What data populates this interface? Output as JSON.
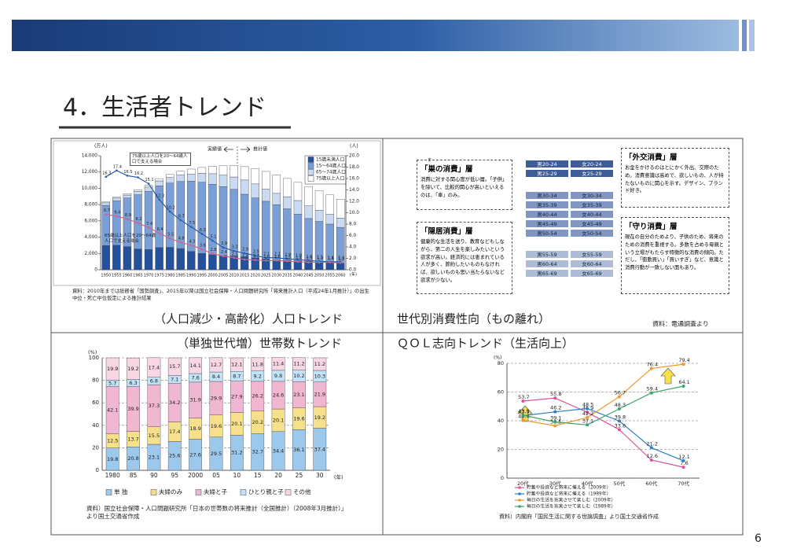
{
  "header": {
    "title": "4．生活者トレンド"
  },
  "page_number": "6",
  "chart_data": [
    {
      "type": "bar",
      "title": "（人口減少・高齢化）人口トレンド",
      "y_label": "(万人)",
      "y2_label": "(人)",
      "x_label": "(年)",
      "annotations": [
        "実績値",
        "推計値",
        "75歳以上人口を20～64歳人口で支える場合",
        "65歳以上人口を20～64歳人口で支える場合"
      ],
      "source": "資料：2010年までは総務省「国勢調査」、2015年以降は国立社会保障・人口問題研究所「将来推計人口（平成24年1月推計）」の出生中位・死亡中位仮定による推計結果",
      "categories": [
        "1950",
        "1955",
        "1960",
        "1965",
        "1970",
        "1975",
        "1980",
        "1985",
        "1990",
        "1995",
        "2000",
        "2005",
        "2010",
        "2015",
        "2020",
        "2025",
        "2030",
        "2035",
        "2040",
        "2045",
        "2050",
        "2055",
        "2060"
      ],
      "ylim": [
        0,
        14000
      ],
      "yticks": [
        0,
        {
          "value": 2000,
          "label": "2,000"
        },
        {
          "value": 4000,
          "label": "4,000"
        },
        {
          "value": 6000,
          "label": "6,000"
        },
        {
          "value": 8000,
          "label": "8,000"
        },
        {
          "value": 10000,
          "label": "10,000"
        },
        {
          "value": 12000,
          "label": "12,000"
        },
        {
          "value": 14000,
          "label": "14,000"
        }
      ],
      "y2lim": [
        0,
        20
      ],
      "y2ticks": [
        {
          "value": 0,
          "label": "0.0"
        },
        {
          "value": 2,
          "label": "2.0"
        },
        {
          "value": 4,
          "label": "4.0"
        },
        {
          "value": 6,
          "label": "6.0"
        },
        {
          "value": 8,
          "label": "8.0"
        },
        {
          "value": 10,
          "label": "10.0"
        },
        {
          "value": 12,
          "label": "12.0"
        },
        {
          "value": 14,
          "label": "14.0"
        },
        {
          "value": 16,
          "label": "16.0"
        },
        {
          "value": 18,
          "label": "18.0"
        },
        {
          "value": 20,
          "label": "20.0"
        }
      ],
      "grid": false,
      "legend": "top-right",
      "series": [
        {
          "name": "15歳未満人口",
          "color": "#24509c",
          "values": [
            2980,
            3010,
            2840,
            2550,
            2480,
            2720,
            2750,
            2600,
            2250,
            2000,
            1850,
            1760,
            1680,
            1580,
            1460,
            1320,
            1200,
            1130,
            1070,
            1010,
            940,
            860,
            790
          ]
        },
        {
          "name": "15～64歳人口",
          "color": "#7a9fd6",
          "values": [
            4930,
            5440,
            5970,
            6660,
            7150,
            7590,
            7890,
            8240,
            8620,
            8740,
            8640,
            8450,
            8190,
            7690,
            7350,
            7090,
            6780,
            6350,
            5750,
            5280,
            4990,
            4740,
            4410
          ]
        },
        {
          "name": "65～74歳人口",
          "color": "#c9daf1",
          "values": [
            310,
            350,
            360,
            400,
            520,
            600,
            690,
            790,
            890,
            1100,
            1300,
            1410,
            1520,
            1750,
            1730,
            1480,
            1400,
            1490,
            1680,
            1550,
            1370,
            1200,
            1130
          ]
        },
        {
          "name": "75歳以上人口",
          "color": "#ffffff",
          "values": [
            100,
            130,
            170,
            220,
            220,
            280,
            370,
            470,
            600,
            720,
            900,
            1160,
            1420,
            1640,
            1870,
            2180,
            2280,
            2240,
            2230,
            2380,
            2410,
            2390,
            2340
          ]
        },
        {
          "name": "75歳以上人口1人を支える20～64歳人口",
          "color": "#2a5db0",
          "axis": "y2",
          "values": [
            16.3,
            17.4,
            16.5,
            16.2,
            15.1,
            12.3,
            10.2,
            8.7,
            7.5,
            6.3,
            5.1,
            3.9,
            3.3,
            2.9,
            2.5,
            2.1,
            2.1,
            1.9,
            1.8,
            1.6,
            1.5,
            1.4,
            1.4
          ]
        },
        {
          "name": "65歳以上人口1人を支える20～64歳人口",
          "color": "#d0648a",
          "axis": "y2",
          "values": [
            9.7,
            9.4,
            8.9,
            8.2,
            7.4,
            6.4,
            5.5,
            4.8,
            4.3,
            3.6,
            2.8,
            2.4,
            2.1,
            1.8,
            1.7,
            1.6,
            1.6,
            1.5,
            1.4,
            1.3,
            1.3,
            1.3,
            1.2
          ]
        }
      ]
    },
    {
      "type": "bar",
      "title": "（単独世代増）世帯数トレンド",
      "y_label": "(%)",
      "x_label": "(年)",
      "source": "資料）国立社会保障・人口問題研究所「日本の世帯数の将来推計（全国推計）（2008年3月推計）」より国土交通省作成",
      "categories": [
        "1980",
        "85",
        "90",
        "95",
        "2000",
        "05",
        "10",
        "15",
        "20",
        "25",
        "30"
      ],
      "ylim": [
        0,
        100
      ],
      "yticks": [
        0,
        20,
        40,
        60,
        80,
        100
      ],
      "grid": true,
      "legend": "bottom",
      "series": [
        {
          "name": "単 独",
          "color": "#9cc8ec",
          "values": [
            19.8,
            20.8,
            23.1,
            25.6,
            27.6,
            29.5,
            31.2,
            32.7,
            34.4,
            36.1,
            37.4
          ]
        },
        {
          "name": "夫婦のみ",
          "color": "#f6e08c",
          "values": [
            12.5,
            13.7,
            15.5,
            17.4,
            18.9,
            19.6,
            20.1,
            20.2,
            20.1,
            19.6,
            19.2
          ]
        },
        {
          "name": "夫婦と子",
          "color": "#f1b6d0",
          "values": [
            42.1,
            39.9,
            37.3,
            34.2,
            31.9,
            29.9,
            27.9,
            26.2,
            24.6,
            23.1,
            21.9
          ]
        },
        {
          "name": "ひとり親と子",
          "color": "#c2e2f6",
          "values": [
            5.7,
            6.3,
            6.8,
            7.1,
            7.6,
            8.4,
            8.7,
            9.2,
            9.8,
            10.2,
            10.3
          ]
        },
        {
          "name": "その他",
          "color": "#f8d6e4",
          "values": [
            19.9,
            19.2,
            17.4,
            15.7,
            14.1,
            12.7,
            12.1,
            11.8,
            11.4,
            11.2,
            11.2
          ]
        }
      ]
    },
    {
      "type": "line",
      "title": "ＱＯＬ志向トレンド（生活向上）",
      "y_label": "(%)",
      "source": "資料）内閣府「国民生活に関する世論調査」より国土交通省作成",
      "categories": [
        "20代",
        "30代",
        "40代",
        "50代",
        "60代",
        "70代"
      ],
      "ylim": [
        0,
        80
      ],
      "yticks": [
        0,
        20,
        40,
        60,
        80
      ],
      "grid": true,
      "legend": "bottom",
      "series": [
        {
          "name": "貯蓄や投資など将来に備える（2009年）",
          "color": "#e0509a",
          "values": [
            53.7,
            55.8,
            45.9,
            33.8,
            12.6,
            7.6
          ]
        },
        {
          "name": "貯蓄や投資など将来に備える（1989年）",
          "color": "#2f7fc4",
          "values": [
            43.5,
            46.2,
            48.5,
            39.8,
            21.2,
            12.1
          ]
        },
        {
          "name": "毎日の生活を充実させて楽しむ（2009年）",
          "color": "#f0962a",
          "values": [
            40.4,
            36.5,
            42.2,
            56.7,
            76.4,
            79.4
          ]
        },
        {
          "name": "毎日の生活を充実させて楽しむ（1989年）",
          "color": "#3aa66a",
          "values": [
            43.9,
            39.1,
            37.1,
            48.3,
            59.4,
            64.1
          ]
        }
      ]
    }
  ],
  "diagram": {
    "title": "世代別消費性向（もの離れ）",
    "source": "資料：電通調査より",
    "groups": [
      {
        "name": "「巣の消費」層",
        "ruby": "す",
        "text": "消費に対する関心度が低い層。「子供」を除いて、比較的関心が高いといえるのは、「車」のみ。"
      },
      {
        "name": "「隠居消費」層",
        "text": "健康的な生活を送り、教育などもしながら、第二の人生を楽しみたいという欲求が高い。経済的には恵まれている人が多く、節約したいものもなければ、欲しいものも思い当たらないなど欲求が少ない。"
      },
      {
        "name": "「外交消費」層",
        "text": "お金をかけるのはとにかく外出、交際のため。消費意識は高めで、欲しいもの、人が持たないものに関心を示す。デザイン、ブランド好き。"
      },
      {
        "name": "「守り消費」層",
        "text": "現在の自分のためより、子供のため、将来のための消費を重視する。多数を占める母親という立場がもたらす特徴的な消費の傾向。ただし、「衝動買い」「買いすぎ」など、意識と消費行動が一致しない面もあり。"
      }
    ],
    "age_groups": [
      [
        [
          "男20-24",
          "女20-24"
        ],
        [
          "男25-29",
          "女25-29"
        ]
      ],
      [
        [
          "男30-34",
          "女30-34"
        ],
        [
          "男35-39",
          "女35-39"
        ],
        [
          "男40-44",
          "女40-44"
        ],
        [
          "男45-49",
          "女45-49"
        ],
        [
          "男50-54",
          "女50-54"
        ]
      ],
      [
        [
          "男55-59",
          "女55-59"
        ],
        [
          "男60-64",
          "女60-64"
        ],
        [
          "男65-69",
          "女65-69"
        ]
      ]
    ]
  }
}
